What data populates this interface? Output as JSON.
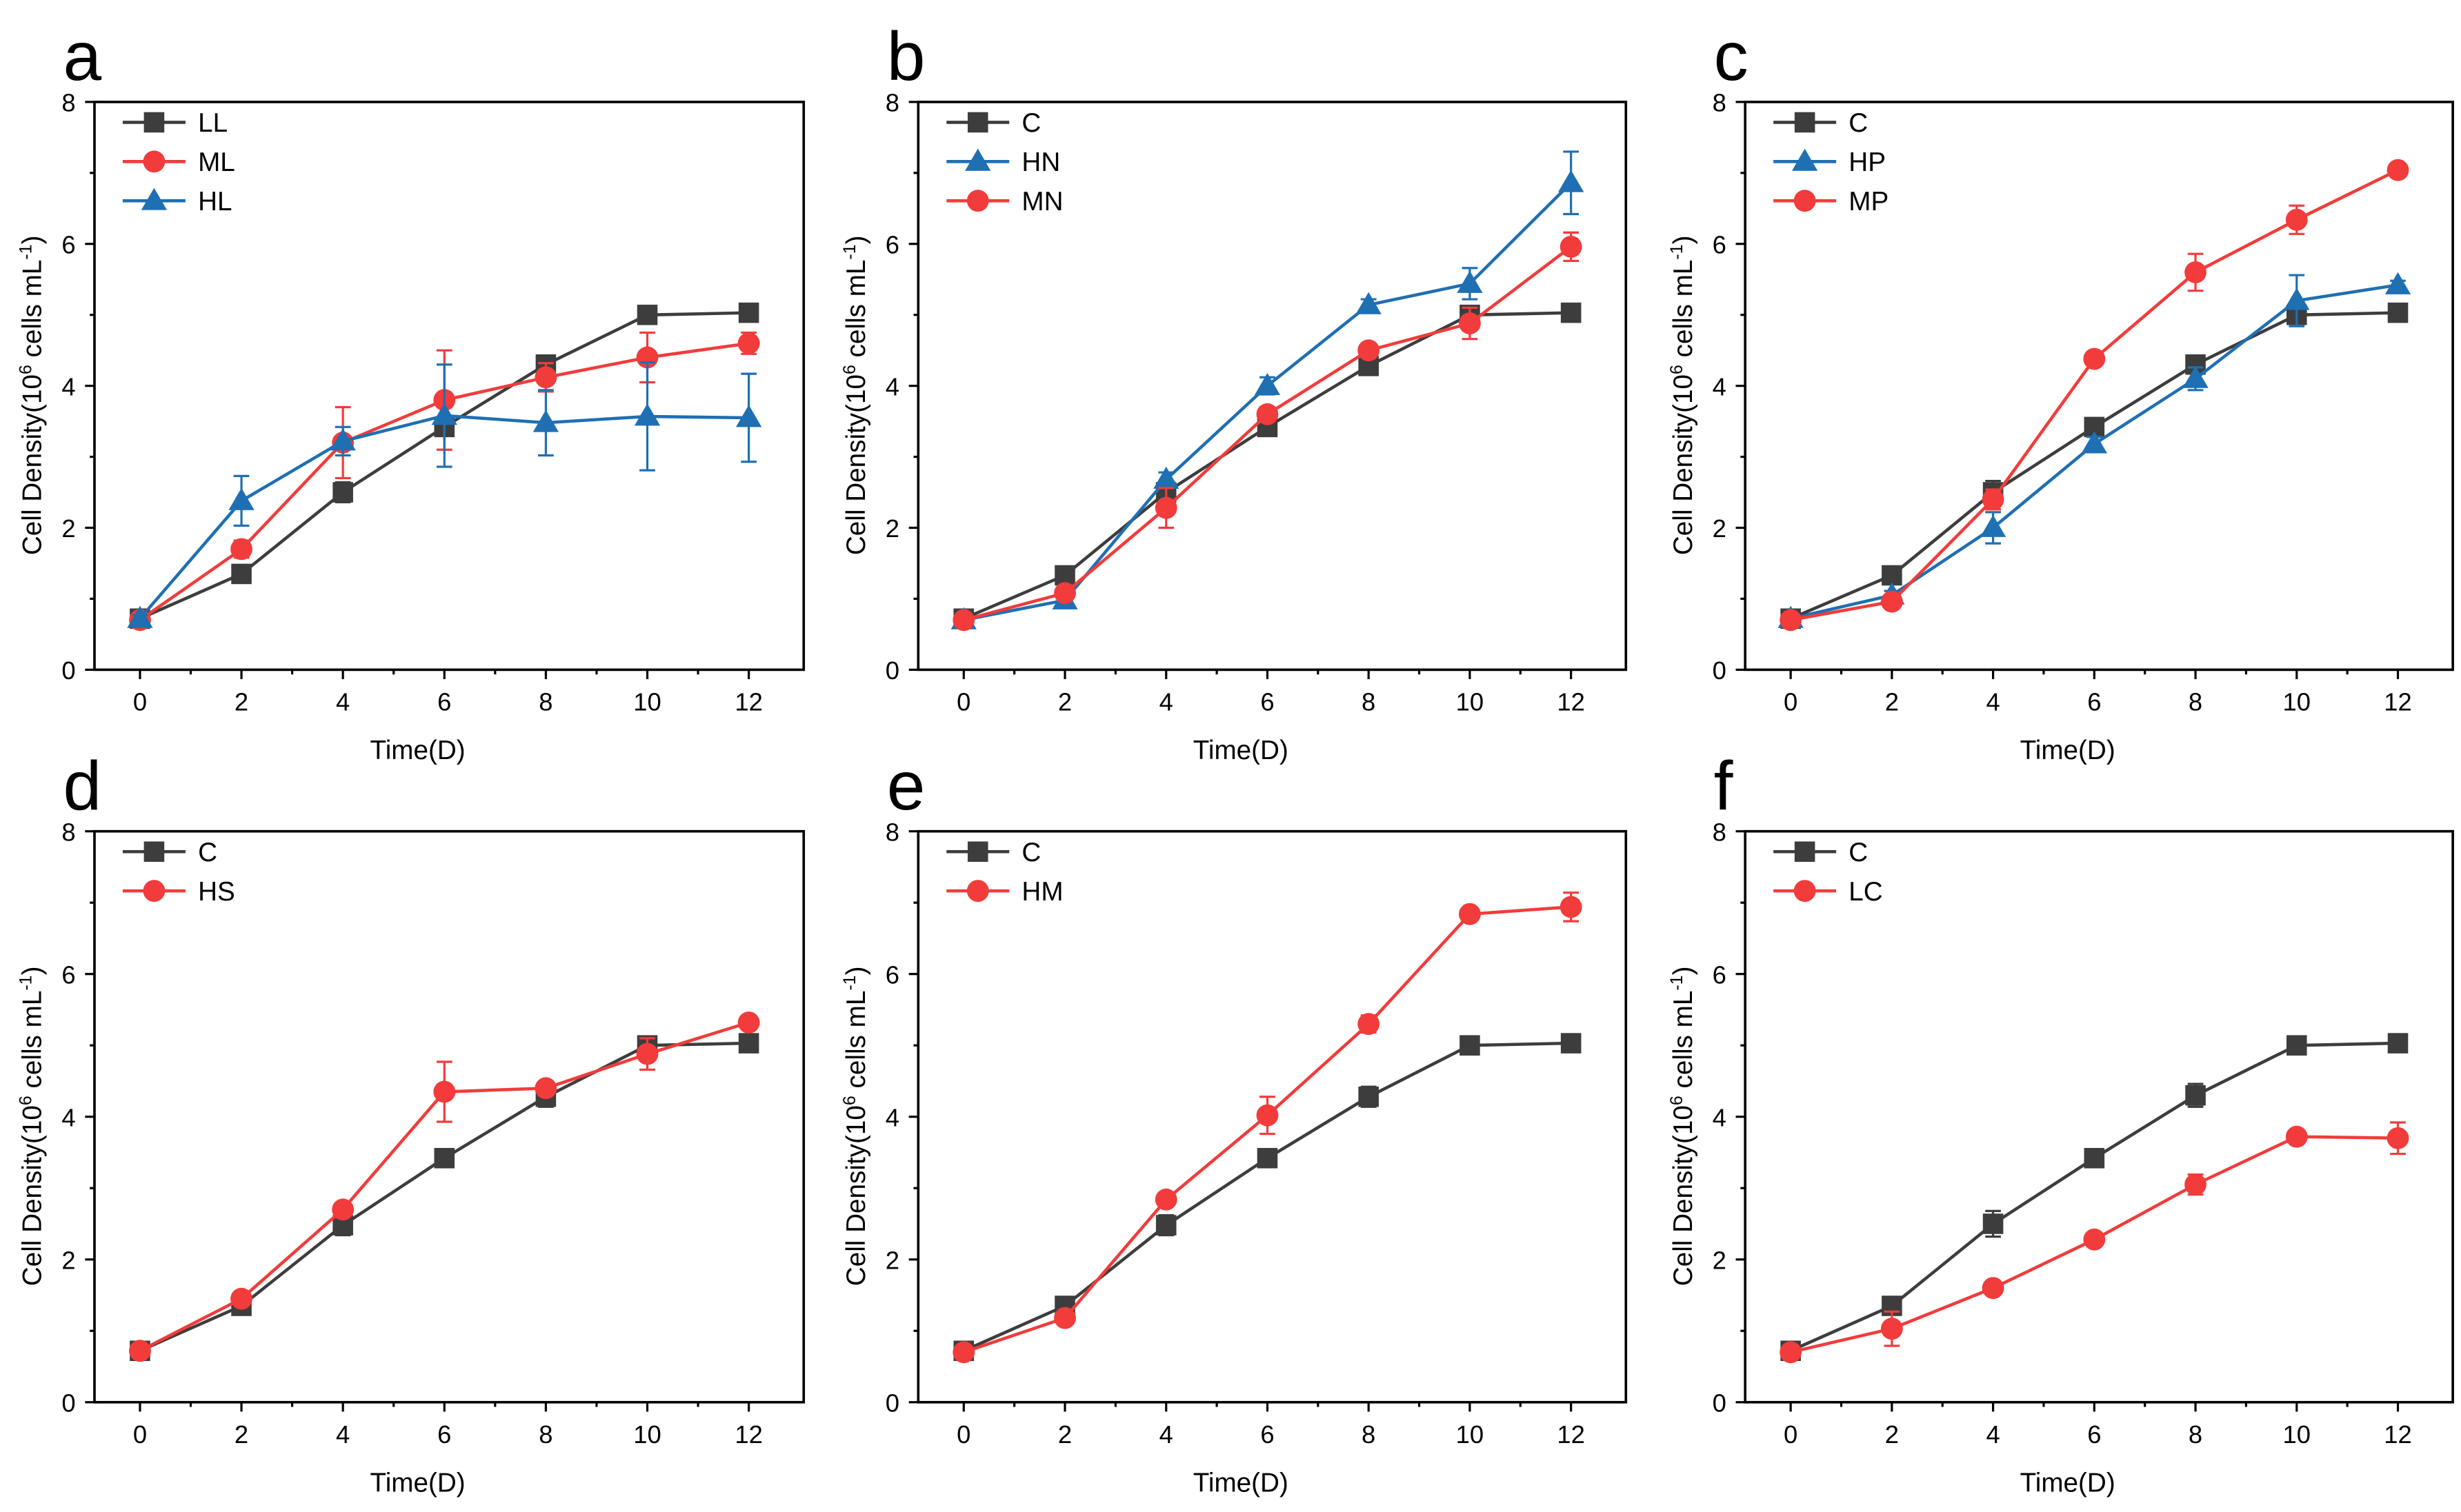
{
  "colors": {
    "C": "#3d3d3d",
    "red": "#f23b3b",
    "blue": "#1f6fb3"
  },
  "chart_data": [
    {
      "panel": "a",
      "type": "line",
      "xlabel": "Time(D)",
      "ylabel": {
        "prefix": "Cell Density(10",
        "exp": "6",
        "mid": " cells mL",
        "exp2": "-1",
        "suffix": ")"
      },
      "xlim": [
        0,
        12
      ],
      "ylim": [
        0,
        8
      ],
      "xticks": [
        "0",
        "2",
        "4",
        "6",
        "8",
        "10",
        "12"
      ],
      "yticks": [
        "0",
        "2",
        "4",
        "6",
        "8"
      ],
      "x": [
        0,
        2,
        4,
        6,
        8,
        10,
        12
      ],
      "series": [
        {
          "name": "LL",
          "marker": "square",
          "color": "#3d3d3d",
          "values": [
            0.72,
            1.35,
            2.5,
            3.42,
            4.3,
            5.0,
            5.03
          ],
          "errors": [
            0.05,
            0.06,
            0.14,
            0.06,
            0.1,
            0.06,
            0.06
          ]
        },
        {
          "name": "ML",
          "marker": "circle",
          "color": "#f23b3b",
          "values": [
            0.7,
            1.7,
            3.2,
            3.8,
            4.12,
            4.4,
            4.6
          ],
          "errors": [
            0.06,
            0.12,
            0.5,
            0.7,
            0.2,
            0.35,
            0.15
          ]
        },
        {
          "name": "HL",
          "marker": "triangle",
          "color": "#1f6fb3",
          "values": [
            0.72,
            2.38,
            3.22,
            3.58,
            3.48,
            3.57,
            3.55
          ],
          "errors": [
            0.05,
            0.35,
            0.2,
            0.72,
            0.46,
            0.76,
            0.62
          ]
        }
      ]
    },
    {
      "panel": "b",
      "type": "line",
      "xlabel": "Time(D)",
      "ylabel": {
        "prefix": "Cell Density(10",
        "exp": "6",
        "mid": " cells mL",
        "exp2": "-1",
        "suffix": ")"
      },
      "xlim": [
        0,
        12
      ],
      "ylim": [
        0,
        8
      ],
      "xticks": [
        "0",
        "2",
        "4",
        "6",
        "8",
        "10",
        "12"
      ],
      "yticks": [
        "0",
        "2",
        "4",
        "6",
        "8"
      ],
      "x": [
        0,
        2,
        4,
        6,
        8,
        10,
        12
      ],
      "series": [
        {
          "name": "C",
          "marker": "square",
          "color": "#3d3d3d",
          "values": [
            0.72,
            1.33,
            2.5,
            3.42,
            4.28,
            5.0,
            5.03
          ],
          "errors": [
            0.05,
            0.06,
            0.14,
            0.06,
            0.12,
            0.06,
            0.06
          ]
        },
        {
          "name": "HN",
          "marker": "triangle",
          "color": "#1f6fb3",
          "values": [
            0.7,
            0.98,
            2.68,
            4.0,
            5.14,
            5.44,
            6.86
          ],
          "errors": [
            0.05,
            0.05,
            0.1,
            0.12,
            0.08,
            0.22,
            0.44
          ]
        },
        {
          "name": "MN",
          "marker": "circle",
          "color": "#f23b3b",
          "values": [
            0.7,
            1.08,
            2.28,
            3.6,
            4.5,
            4.88,
            5.96
          ],
          "errors": [
            0.05,
            0.06,
            0.28,
            0.1,
            0.06,
            0.22,
            0.2
          ]
        }
      ]
    },
    {
      "panel": "c",
      "type": "line",
      "xlabel": "Time(D)",
      "ylabel": {
        "prefix": "Cell Density(10",
        "exp": "6",
        "mid": " cells mL",
        "exp2": "-1",
        "suffix": ")"
      },
      "xlim": [
        0,
        12
      ],
      "ylim": [
        0,
        8
      ],
      "xticks": [
        "0",
        "2",
        "4",
        "6",
        "8",
        "10",
        "12"
      ],
      "yticks": [
        "0",
        "2",
        "4",
        "6",
        "8"
      ],
      "x": [
        0,
        2,
        4,
        6,
        8,
        10,
        12
      ],
      "series": [
        {
          "name": "C",
          "marker": "square",
          "color": "#3d3d3d",
          "values": [
            0.72,
            1.33,
            2.5,
            3.42,
            4.3,
            5.0,
            5.03
          ],
          "errors": [
            0.05,
            0.06,
            0.16,
            0.06,
            0.12,
            0.1,
            0.06
          ]
        },
        {
          "name": "HP",
          "marker": "triangle",
          "color": "#1f6fb3",
          "values": [
            0.72,
            1.05,
            2.0,
            3.18,
            4.1,
            5.2,
            5.42
          ],
          "errors": [
            0.05,
            0.06,
            0.22,
            0.1,
            0.16,
            0.36,
            0.06
          ]
        },
        {
          "name": "MP",
          "marker": "circle",
          "color": "#f23b3b",
          "values": [
            0.7,
            0.96,
            2.4,
            4.38,
            5.6,
            6.34,
            7.04
          ],
          "errors": [
            0.05,
            0.06,
            0.14,
            0.06,
            0.26,
            0.2,
            0.06
          ]
        }
      ]
    },
    {
      "panel": "d",
      "type": "line",
      "xlabel": "Time(D)",
      "ylabel": {
        "prefix": "Cell Density(10",
        "exp": "6",
        "mid": " cells mL",
        "exp2": "-1",
        "suffix": ")"
      },
      "xlim": [
        0,
        12
      ],
      "ylim": [
        0,
        8
      ],
      "xticks": [
        "0",
        "2",
        "4",
        "6",
        "8",
        "10",
        "12"
      ],
      "yticks": [
        "0",
        "2",
        "4",
        "6",
        "8"
      ],
      "x": [
        0,
        2,
        4,
        6,
        8,
        10,
        12
      ],
      "series": [
        {
          "name": "C",
          "marker": "square",
          "color": "#3d3d3d",
          "values": [
            0.72,
            1.35,
            2.48,
            3.42,
            4.28,
            5.0,
            5.03
          ],
          "errors": [
            0.05,
            0.06,
            0.14,
            0.06,
            0.14,
            0.06,
            0.06
          ]
        },
        {
          "name": "HS",
          "marker": "circle",
          "color": "#f23b3b",
          "values": [
            0.72,
            1.45,
            2.7,
            4.35,
            4.4,
            4.88,
            5.32
          ],
          "errors": [
            0.05,
            0.06,
            0.08,
            0.42,
            0.06,
            0.22,
            0.06
          ]
        }
      ]
    },
    {
      "panel": "e",
      "type": "line",
      "xlabel": "Time(D)",
      "ylabel": {
        "prefix": "Cell Density(10",
        "exp": "6",
        "mid": " cells mL",
        "exp2": "-1",
        "suffix": ")"
      },
      "xlim": [
        0,
        12
      ],
      "ylim": [
        0,
        8
      ],
      "xticks": [
        "0",
        "2",
        "4",
        "6",
        "8",
        "10",
        "12"
      ],
      "yticks": [
        "0",
        "2",
        "4",
        "6",
        "8"
      ],
      "x": [
        0,
        2,
        4,
        6,
        8,
        10,
        12
      ],
      "series": [
        {
          "name": "C",
          "marker": "square",
          "color": "#3d3d3d",
          "values": [
            0.72,
            1.35,
            2.48,
            3.42,
            4.28,
            5.0,
            5.03
          ],
          "errors": [
            0.05,
            0.06,
            0.14,
            0.06,
            0.14,
            0.06,
            0.06
          ]
        },
        {
          "name": "HM",
          "marker": "circle",
          "color": "#f23b3b",
          "values": [
            0.7,
            1.18,
            2.84,
            4.02,
            5.3,
            6.84,
            6.94
          ],
          "errors": [
            0.05,
            0.06,
            0.06,
            0.26,
            0.12,
            0.06,
            0.2
          ]
        }
      ]
    },
    {
      "panel": "f",
      "type": "line",
      "xlabel": "Time(D)",
      "ylabel": {
        "prefix": "Cell Density(10",
        "exp": "6",
        "mid": " cells mL",
        "exp2": "-1",
        "suffix": ")"
      },
      "xlim": [
        0,
        12
      ],
      "ylim": [
        0,
        8
      ],
      "xticks": [
        "0",
        "2",
        "4",
        "6",
        "8",
        "10",
        "12"
      ],
      "yticks": [
        "0",
        "2",
        "4",
        "6",
        "8"
      ],
      "x": [
        0,
        2,
        4,
        6,
        8,
        10,
        12
      ],
      "series": [
        {
          "name": "C",
          "marker": "square",
          "color": "#3d3d3d",
          "values": [
            0.72,
            1.35,
            2.5,
            3.42,
            4.3,
            5.0,
            5.03
          ],
          "errors": [
            0.05,
            0.06,
            0.18,
            0.06,
            0.16,
            0.06,
            0.06
          ]
        },
        {
          "name": "LC",
          "marker": "circle",
          "color": "#f23b3b",
          "values": [
            0.7,
            1.03,
            1.6,
            2.28,
            3.05,
            3.72,
            3.7
          ],
          "errors": [
            0.05,
            0.24,
            0.06,
            0.06,
            0.14,
            0.06,
            0.22
          ]
        }
      ]
    }
  ]
}
